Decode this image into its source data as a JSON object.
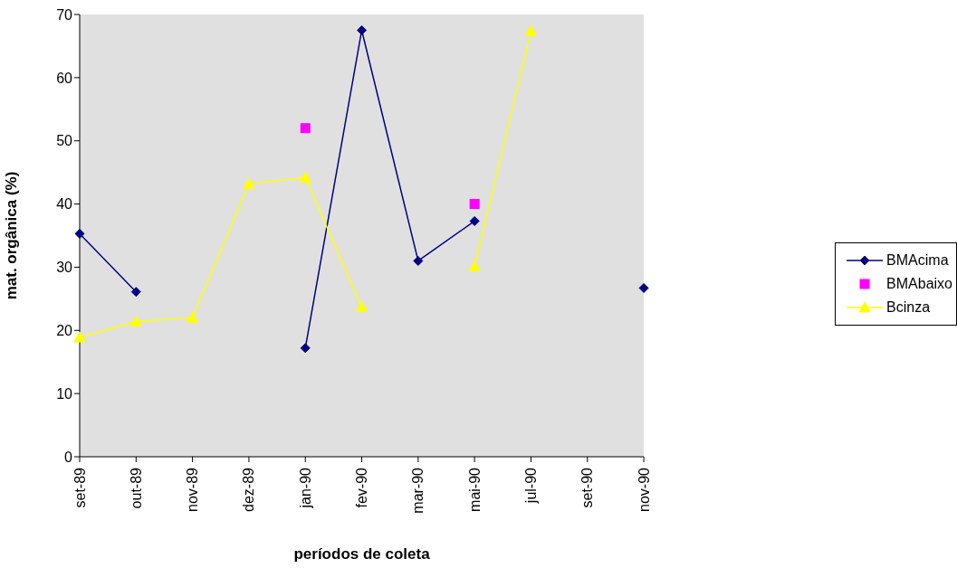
{
  "chart_data": {
    "type": "line",
    "xlabel": "períodos de coleta",
    "ylabel": "mat. orgânica (%)",
    "categories": [
      "set-89",
      "out-89",
      "nov-89",
      "dez-89",
      "jan-90",
      "fev-90",
      "mar-90",
      "mai-90",
      "jul-90",
      "set-90",
      "nov-90"
    ],
    "series": [
      {
        "name": "BMAcima",
        "color": "#000080",
        "marker": "diamond",
        "values": [
          35.3,
          26.1,
          null,
          null,
          17.2,
          67.5,
          31,
          37.3,
          null,
          null,
          26.7
        ]
      },
      {
        "name": "BMAbaixo",
        "type": "scatter",
        "color": "#ff00ff",
        "marker": "square",
        "values": [
          null,
          null,
          null,
          null,
          52,
          null,
          null,
          40,
          null,
          null,
          null
        ]
      },
      {
        "name": "Bcinza",
        "color": "#ffff00",
        "marker": "triangle",
        "values": [
          18.9,
          21.4,
          22,
          43.2,
          44.2,
          23.7,
          null,
          30.1,
          67.4,
          null,
          null
        ]
      }
    ],
    "ylim": [
      0,
      70
    ],
    "yticks": [
      0,
      10,
      20,
      30,
      40,
      50,
      60,
      70
    ],
    "grid": false,
    "legend": "right"
  }
}
